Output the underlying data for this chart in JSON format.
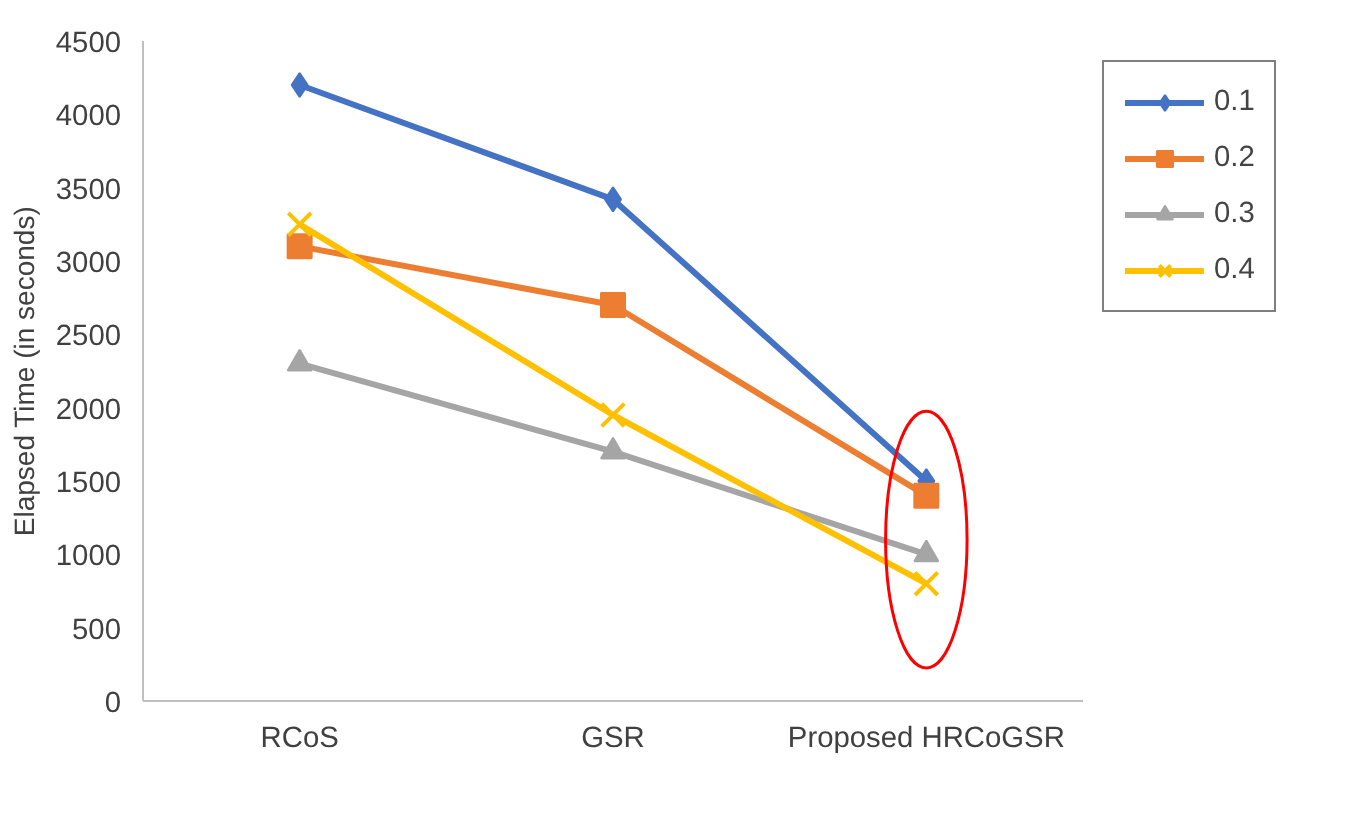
{
  "chart_data": {
    "type": "line",
    "ylabel": "Elapsed Time (in seconds)",
    "categories": [
      "RCoS",
      "GSR",
      "Proposed HRCoGSR"
    ],
    "ylim": [
      0,
      4500
    ],
    "yticks": [
      0,
      500,
      1000,
      1500,
      2000,
      2500,
      3000,
      3500,
      4000,
      4500
    ],
    "grid": false,
    "legend": "top right",
    "series": [
      {
        "name": "0.1",
        "color": "#4472c4",
        "marker": "diamond",
        "values": [
          4200,
          3420,
          1500
        ]
      },
      {
        "name": "0.2",
        "color": "#ed7d31",
        "marker": "square",
        "values": [
          3100,
          2700,
          1400
        ]
      },
      {
        "name": "0.3",
        "color": "#a5a5a5",
        "marker": "triangle",
        "values": [
          2300,
          1700,
          1000
        ]
      },
      {
        "name": "0.4",
        "color": "#ffc000",
        "marker": "cross",
        "values": [
          3250,
          1950,
          800
        ]
      }
    ]
  }
}
